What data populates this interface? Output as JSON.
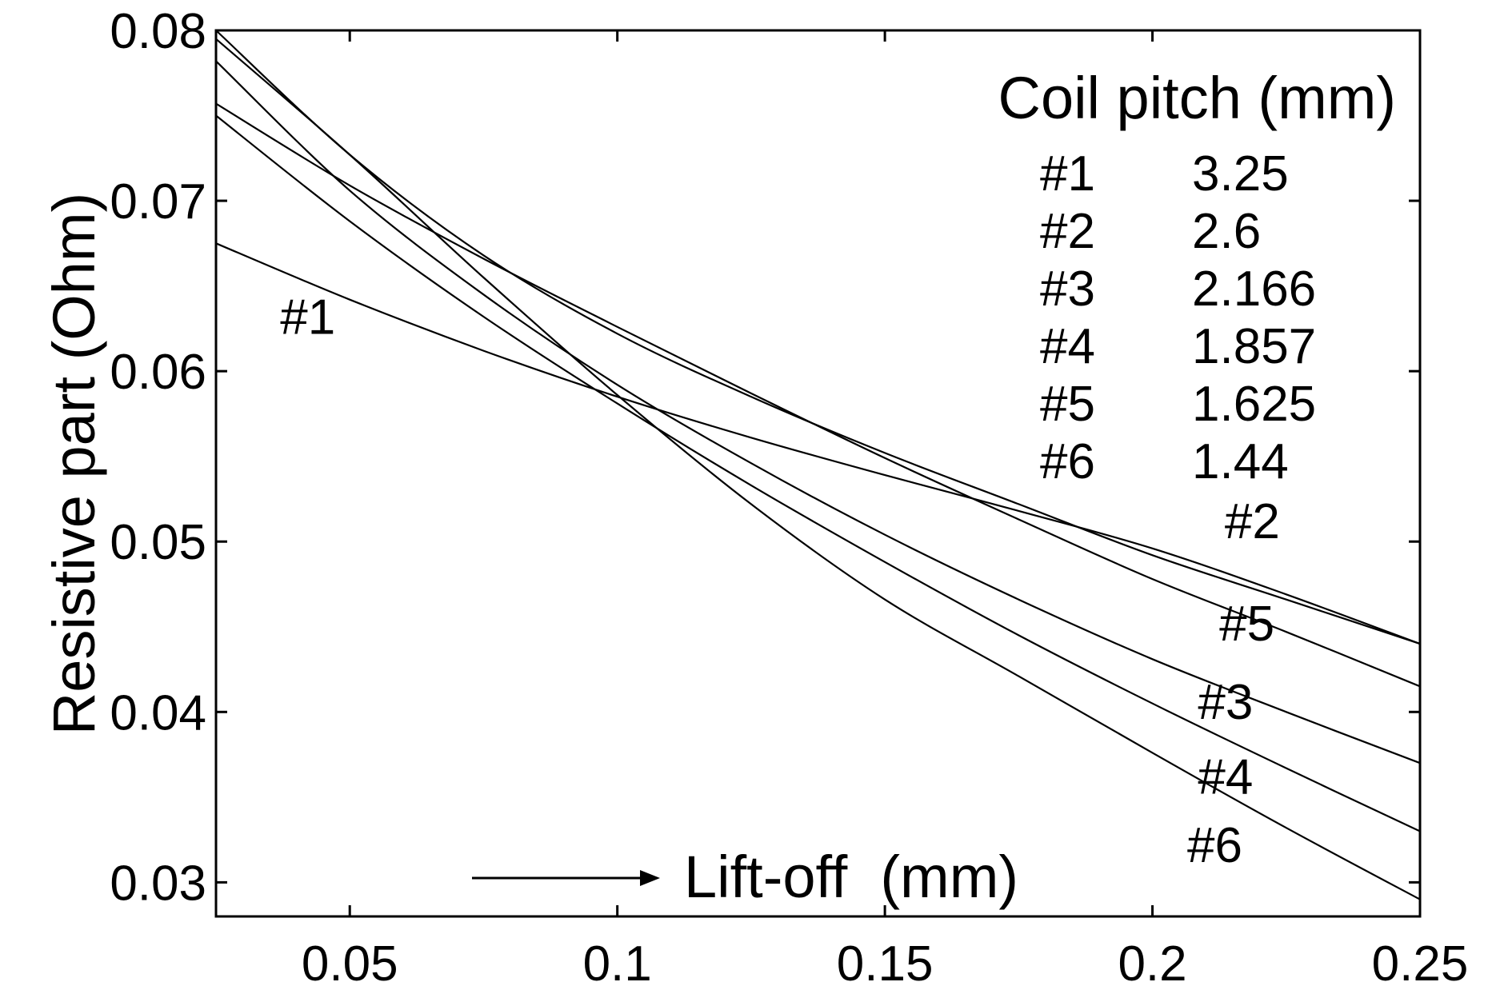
{
  "chart_data": {
    "type": "line",
    "xlabel": "Lift-off  (mm)",
    "ylabel": "Resistive part  (Ohm)",
    "xlim": [
      0.025,
      0.25
    ],
    "ylim": [
      0.028,
      0.08
    ],
    "grid": false,
    "xticks": [
      {
        "value": 0.05,
        "label": "0.05"
      },
      {
        "value": 0.1,
        "label": "0.1"
      },
      {
        "value": 0.15,
        "label": "0.15"
      },
      {
        "value": 0.2,
        "label": "0.2"
      },
      {
        "value": 0.25,
        "label": "0.25"
      }
    ],
    "yticks": [
      {
        "value": 0.03,
        "label": "0.03"
      },
      {
        "value": 0.04,
        "label": "0.04"
      },
      {
        "value": 0.05,
        "label": "0.05"
      },
      {
        "value": 0.06,
        "label": "0.06"
      },
      {
        "value": 0.07,
        "label": "0.07"
      },
      {
        "value": 0.08,
        "label": "0.08"
      }
    ],
    "legend": {
      "title": "Coil pitch (mm)",
      "placement": "top-right",
      "entries": [
        {
          "label": "#1",
          "value": "3.25"
        },
        {
          "label": "#2",
          "value": "2.6"
        },
        {
          "label": "#3",
          "value": "2.166"
        },
        {
          "label": "#4",
          "value": "1.857"
        },
        {
          "label": "#5",
          "value": "1.625"
        },
        {
          "label": "#6",
          "value": "1.44"
        }
      ]
    },
    "series": [
      {
        "name": "#1",
        "x": [
          0.025,
          0.05,
          0.075,
          0.1,
          0.125,
          0.15,
          0.175,
          0.2,
          0.225,
          0.25
        ],
        "y": [
          0.0675,
          0.0642,
          0.0612,
          0.0585,
          0.0561,
          0.0539,
          0.0518,
          0.0496,
          0.0469,
          0.044
        ]
      },
      {
        "name": "#2",
        "x": [
          0.025,
          0.05,
          0.075,
          0.1,
          0.125,
          0.15,
          0.175,
          0.2,
          0.225,
          0.25
        ],
        "y": [
          0.08,
          0.0727,
          0.0668,
          0.0622,
          0.0585,
          0.0552,
          0.0522,
          0.0492,
          0.0466,
          0.044
        ]
      },
      {
        "name": "#3",
        "x": [
          0.025,
          0.05,
          0.075,
          0.1,
          0.125,
          0.15,
          0.175,
          0.2,
          0.225,
          0.25
        ],
        "y": [
          0.0782,
          0.0706,
          0.0645,
          0.0592,
          0.0546,
          0.0504,
          0.0466,
          0.0431,
          0.04,
          0.037
        ]
      },
      {
        "name": "#4",
        "x": [
          0.025,
          0.05,
          0.075,
          0.1,
          0.125,
          0.15,
          0.175,
          0.2,
          0.225,
          0.25
        ],
        "y": [
          0.075,
          0.0688,
          0.0632,
          0.0581,
          0.0533,
          0.0488,
          0.0445,
          0.0405,
          0.0367,
          0.033
        ]
      },
      {
        "name": "#5",
        "x": [
          0.025,
          0.05,
          0.075,
          0.1,
          0.125,
          0.15,
          0.175,
          0.2,
          0.225,
          0.25
        ],
        "y": [
          0.0757,
          0.0709,
          0.0666,
          0.0626,
          0.0587,
          0.0549,
          0.0513,
          0.0478,
          0.0447,
          0.0415
        ]
      },
      {
        "name": "#6",
        "x": [
          0.025,
          0.05,
          0.075,
          0.1,
          0.125,
          0.15,
          0.175,
          0.2,
          0.225,
          0.25
        ],
        "y": [
          0.0795,
          0.0727,
          0.0655,
          0.0586,
          0.0522,
          0.0466,
          0.0421,
          0.0376,
          0.0332,
          0.029
        ]
      }
    ],
    "annotations": [
      {
        "text": "#1",
        "x": 0.037,
        "y": 0.0622
      },
      {
        "text": "#2",
        "x": 0.2135,
        "y": 0.0502
      },
      {
        "text": "#5",
        "x": 0.2125,
        "y": 0.0442
      },
      {
        "text": "#3",
        "x": 0.2085,
        "y": 0.0396
      },
      {
        "text": "#4",
        "x": 0.2085,
        "y": 0.0352
      },
      {
        "text": "#6",
        "x": 0.2065,
        "y": 0.0312
      }
    ]
  }
}
